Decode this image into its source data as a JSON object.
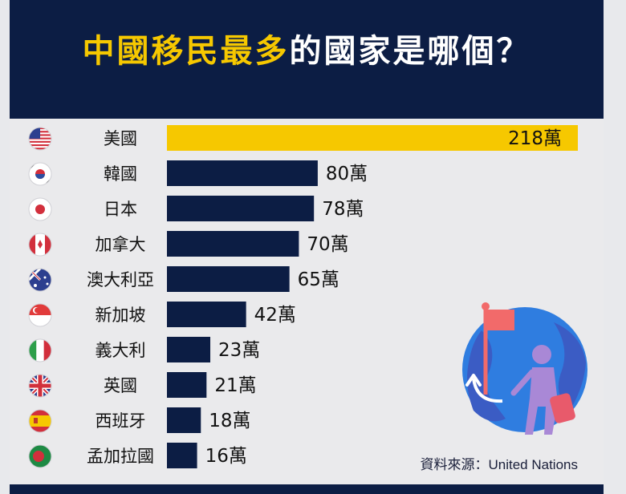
{
  "title_highlight": "中國移民最多",
  "title_rest": "的國家是哪個？",
  "source": "資料來源：United Nations",
  "colors": {
    "highlight_bar": "#f6c800",
    "bar": "#0c1d44",
    "header": "#0c1d44",
    "panel": "#eaeaec"
  },
  "chart_data": {
    "type": "bar",
    "orientation": "horizontal",
    "unit": "萬",
    "categories": [
      "美國",
      "韓國",
      "日本",
      "加拿大",
      "澳大利亞",
      "新加坡",
      "義大利",
      "英國",
      "西班牙",
      "孟加拉國"
    ],
    "values": [
      218,
      80,
      78,
      70,
      65,
      42,
      23,
      21,
      18,
      16
    ],
    "value_labels": [
      "218萬",
      "80萬",
      "78萬",
      "70萬",
      "65萬",
      "42萬",
      "23萬",
      "21萬",
      "18萬",
      "16萬"
    ],
    "flags": [
      "us-flag-icon",
      "kr-flag-icon",
      "jp-flag-icon",
      "ca-flag-icon",
      "au-flag-icon",
      "sg-flag-icon",
      "it-flag-icon",
      "gb-flag-icon",
      "es-flag-icon",
      "bd-flag-icon"
    ],
    "highlight_index": 0,
    "xlim": [
      0,
      218
    ],
    "grid": false,
    "legend": "none"
  }
}
